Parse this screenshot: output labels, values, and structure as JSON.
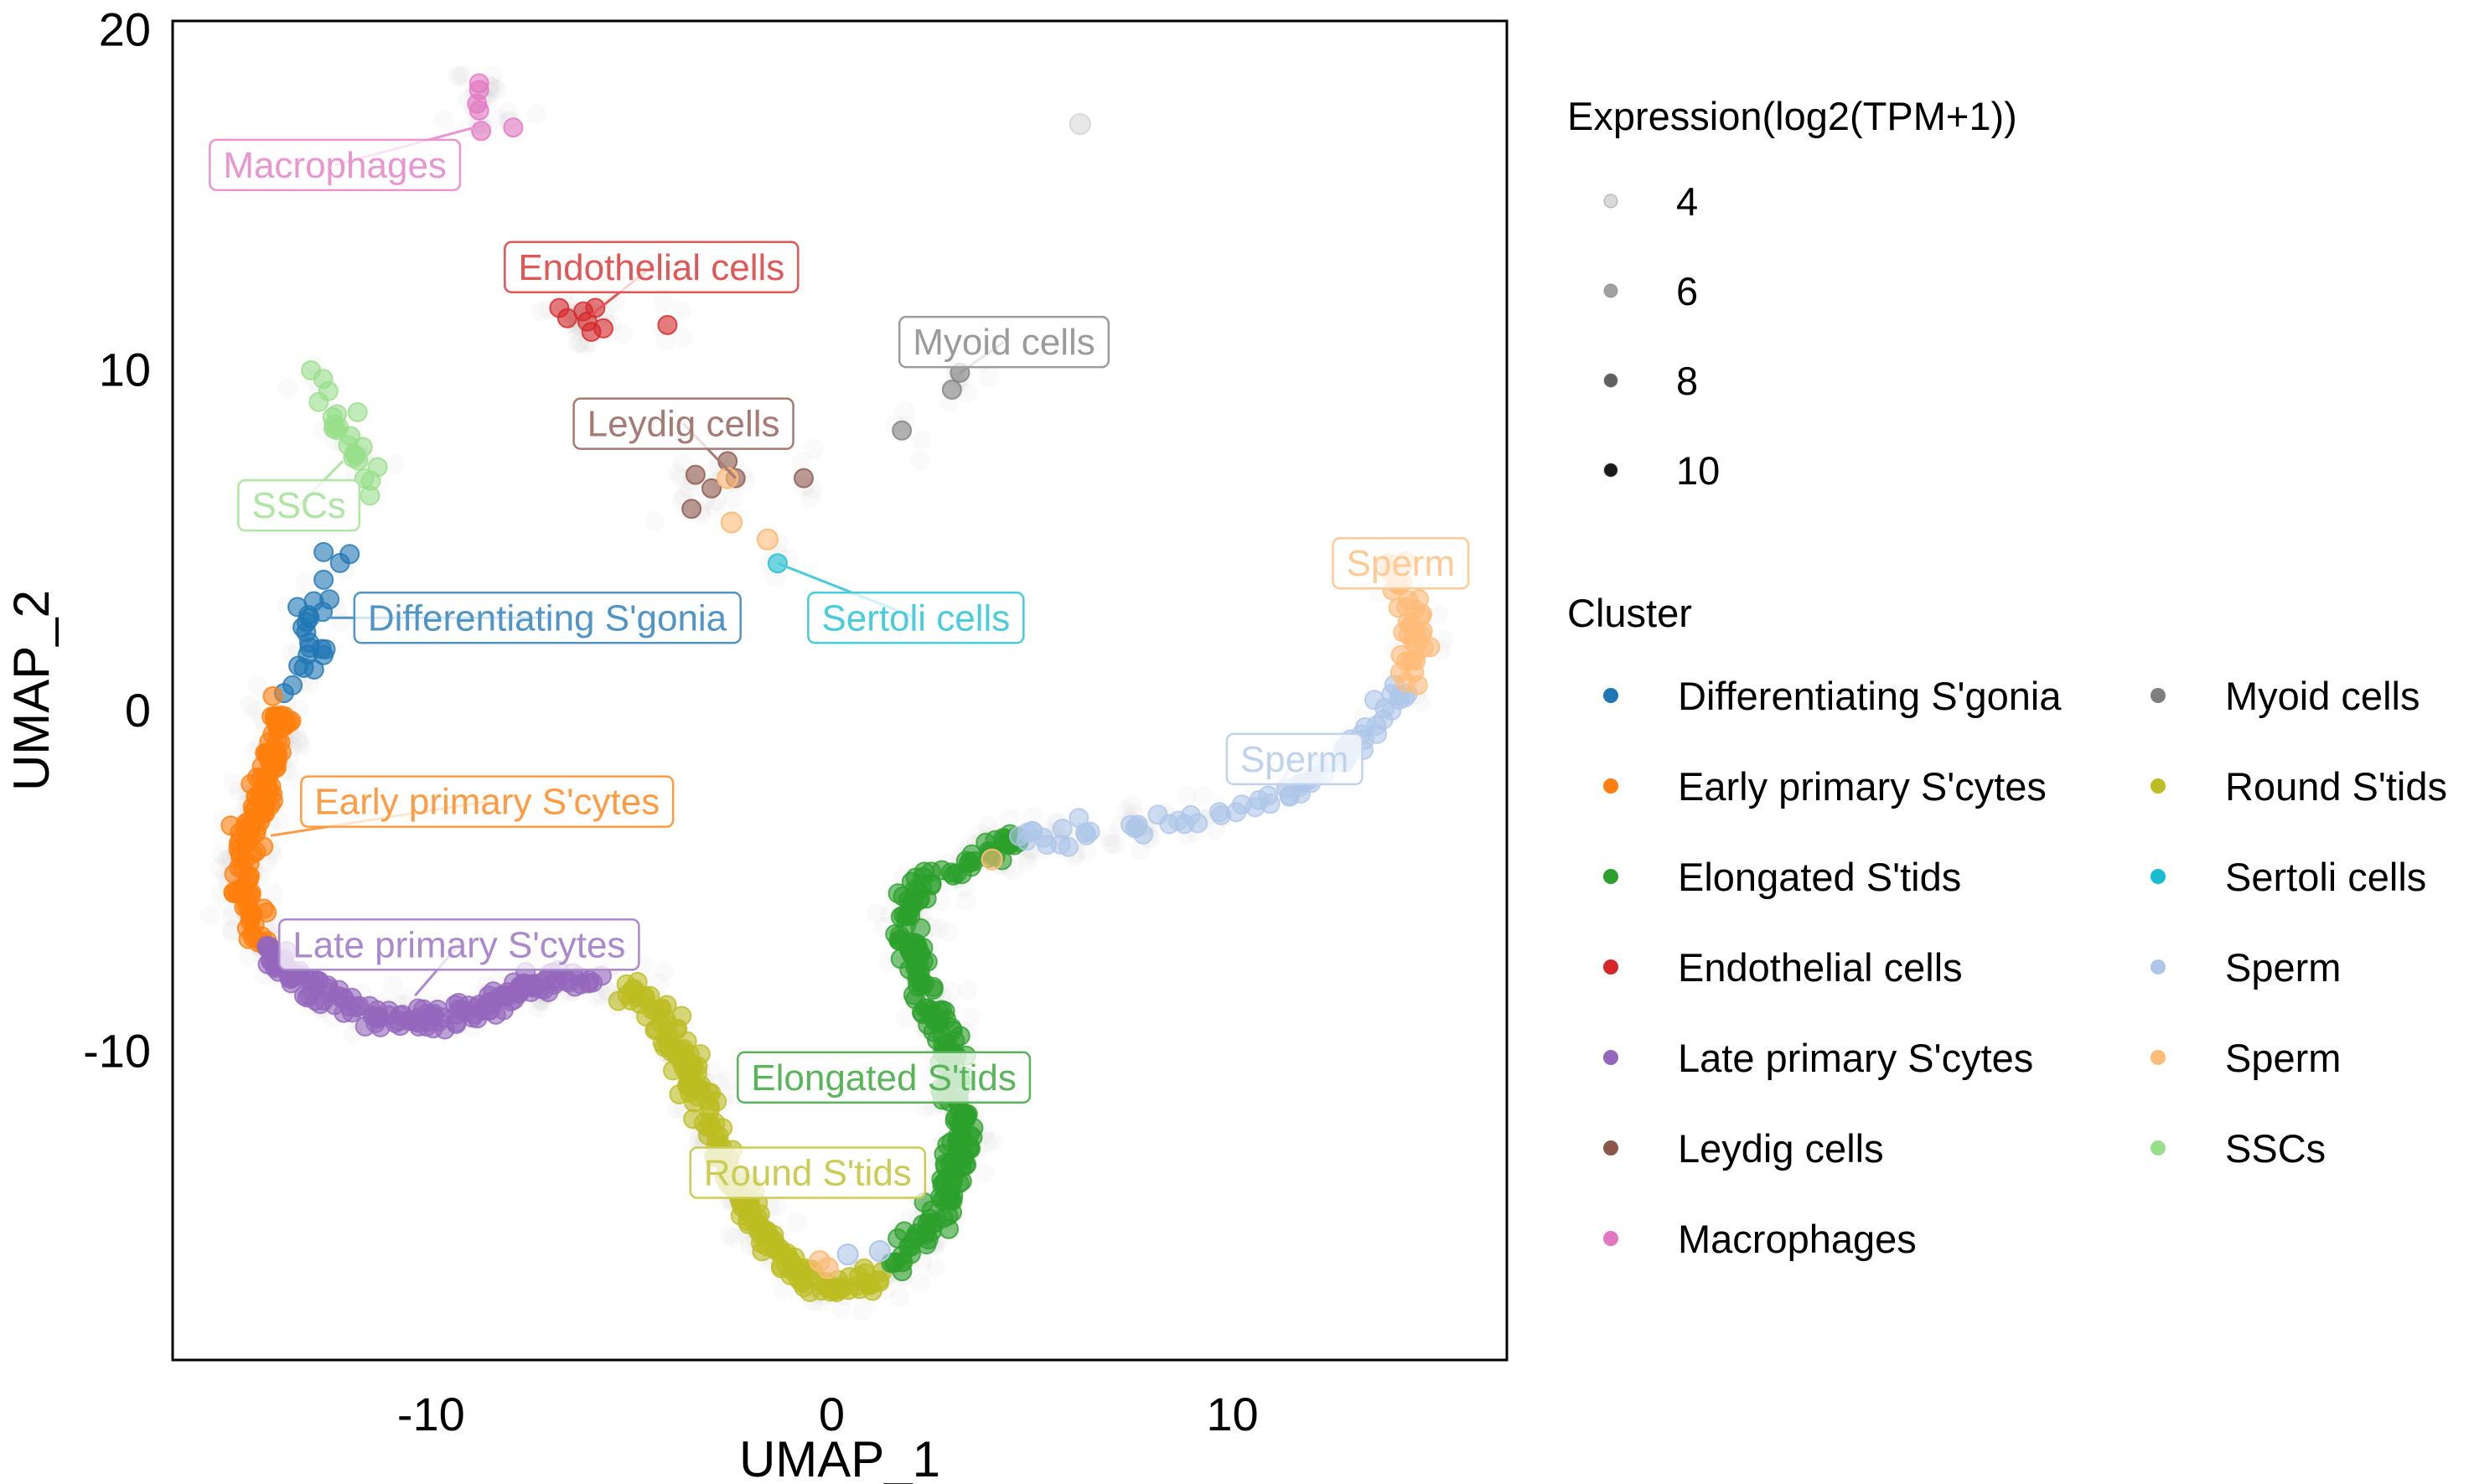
{
  "chart_data": {
    "type": "scatter",
    "title": "",
    "xlabel": "UMAP_1",
    "ylabel": "UMAP_2",
    "xlim": [
      -16.45,
      16.85
    ],
    "ylim": [
      -19.1,
      20.23
    ],
    "x_ticks": [
      -10,
      0,
      10
    ],
    "y_ticks": [
      -10,
      0,
      10,
      20
    ],
    "grid": false,
    "legends": {
      "expression": {
        "title": "Expression(log2(TPM+1))",
        "placement": "right-top",
        "entries": [
          {
            "label": "4",
            "value": 4,
            "color": "#d9d9d9"
          },
          {
            "label": "6",
            "value": 6,
            "color": "#a0a0a0"
          },
          {
            "label": "8",
            "value": 8,
            "color": "#606060"
          },
          {
            "label": "10",
            "value": 10,
            "color": "#1a1a1a"
          }
        ]
      },
      "cluster": {
        "title": "Cluster",
        "placement": "right-bottom",
        "columns": 2,
        "entries": [
          {
            "label": "Differentiating S'gonia",
            "color": "#1f77b4"
          },
          {
            "label": "Early primary S'cytes",
            "color": "#ff7f0e"
          },
          {
            "label": "Elongated S'tids",
            "color": "#2ca02c"
          },
          {
            "label": "Endothelial cells",
            "color": "#d62728"
          },
          {
            "label": "Late primary S'cytes",
            "color": "#9467bd"
          },
          {
            "label": "Leydig cells",
            "color": "#8c564b"
          },
          {
            "label": "Macrophages",
            "color": "#e377c2"
          },
          {
            "label": "Myoid cells",
            "color": "#7f7f7f"
          },
          {
            "label": "Round S'tids",
            "color": "#bcbd22"
          },
          {
            "label": "Sertoli cells",
            "color": "#17becf"
          },
          {
            "label": "Sperm",
            "color": "#aec7e8"
          },
          {
            "label": "Sperm",
            "color": "#ffbb78"
          },
          {
            "label": "SSCs",
            "color": "#98df8a"
          }
        ]
      }
    },
    "clusters": [
      {
        "name": "Macrophages",
        "color": "#e377c2",
        "label_pos": [
          -12.4,
          16.0
        ],
        "anchor": [
          -8.6,
          17.2
        ],
        "points": [
          [
            -8.8,
            18.4
          ],
          [
            -8.8,
            18.2
          ],
          [
            -8.85,
            17.8
          ],
          [
            -8.8,
            17.6
          ],
          [
            -8.75,
            17.0
          ],
          [
            -7.95,
            17.1
          ]
        ]
      },
      {
        "name": "Endothelial cells",
        "color": "#d62728",
        "label_pos": [
          -4.5,
          13.0
        ],
        "anchor": [
          -6.0,
          11.6
        ],
        "points": [
          [
            -6.8,
            11.8
          ],
          [
            -6.6,
            11.5
          ],
          [
            -6.2,
            11.7
          ],
          [
            -6.1,
            11.4
          ],
          [
            -6.0,
            11.1
          ],
          [
            -5.9,
            11.8
          ],
          [
            -5.7,
            11.2
          ],
          [
            -4.1,
            11.3
          ]
        ]
      },
      {
        "name": "Myoid cells",
        "color": "#7f7f7f",
        "label_pos": [
          4.3,
          10.8
        ],
        "anchor": [
          3.2,
          9.9
        ],
        "points": [
          [
            3.2,
            9.9
          ],
          [
            3.0,
            9.4
          ],
          [
            1.75,
            8.2
          ]
        ]
      },
      {
        "name": "Leydig cells",
        "color": "#8c564b",
        "label_pos": [
          -3.7,
          8.4
        ],
        "anchor": [
          -2.4,
          6.8
        ],
        "points": [
          [
            -2.6,
            7.3
          ],
          [
            -3.4,
            6.9
          ],
          [
            -3.0,
            6.5
          ],
          [
            -2.4,
            6.8
          ],
          [
            -3.5,
            5.9
          ],
          [
            -0.7,
            6.8
          ]
        ]
      },
      {
        "name": "Sertoli cells",
        "color": "#17becf",
        "label_pos": [
          2.1,
          2.7
        ],
        "anchor": [
          -1.35,
          4.3
        ],
        "points": [
          [
            -1.35,
            4.3
          ]
        ]
      },
      {
        "name": "SSCs",
        "color": "#98df8a",
        "label_pos": [
          -13.3,
          6.0
        ],
        "anchor": [
          -12.2,
          7.3
        ],
        "path": [
          [
            -13.07,
            9.76
          ],
          [
            -12.47,
            8.77
          ],
          [
            -11.99,
            7.74
          ],
          [
            -11.59,
            7.03
          ],
          [
            -11.59,
            6.33
          ]
        ],
        "count": 22
      },
      {
        "name": "Differentiating S'gonia",
        "color": "#1f77b4",
        "label_pos": [
          -7.1,
          2.7
        ],
        "anchor": [
          -12.6,
          2.7
        ],
        "path": [
          [
            -12.35,
            4.5
          ],
          [
            -12.75,
            3.5
          ],
          [
            -13.2,
            2.8
          ],
          [
            -12.95,
            1.6
          ],
          [
            -13.55,
            0.7
          ]
        ],
        "count": 24
      },
      {
        "name": "Early primary S'cytes",
        "color": "#ff7f0e",
        "label_pos": [
          -8.6,
          -2.7
        ],
        "anchor": [
          -14.0,
          -3.7
        ],
        "path": [
          [
            -13.75,
            0.0
          ],
          [
            -13.95,
            -1.17
          ],
          [
            -14.26,
            -2.58
          ],
          [
            -14.54,
            -3.98
          ],
          [
            -14.74,
            -5.39
          ],
          [
            -14.34,
            -6.79
          ]
        ],
        "count": 140
      },
      {
        "name": "Late primary S'cytes",
        "color": "#9467bd",
        "label_pos": [
          -9.3,
          -6.9
        ],
        "anchor": [
          -10.4,
          -8.4
        ],
        "path": [
          [
            -14.14,
            -7.03
          ],
          [
            -13.35,
            -7.97
          ],
          [
            -11.95,
            -8.77
          ],
          [
            -10.36,
            -9.14
          ],
          [
            -8.76,
            -8.77
          ],
          [
            -7.17,
            -7.97
          ],
          [
            -5.78,
            -7.83
          ]
        ],
        "count": 160
      },
      {
        "name": "Round S'tids",
        "color": "#bcbd22",
        "label_pos": [
          -0.6,
          -13.6
        ],
        "anchor": [
          -0.6,
          -13.6
        ],
        "path": [
          [
            -5.38,
            -8.11
          ],
          [
            -4.38,
            -8.67
          ],
          [
            -3.59,
            -10.55
          ],
          [
            -2.59,
            -13.36
          ],
          [
            -1.59,
            -15.71
          ],
          [
            -0.04,
            -17.11
          ],
          [
            1.55,
            -16.41
          ]
        ],
        "count": 200
      },
      {
        "name": "Elongated S'tids",
        "color": "#2ca02c",
        "label_pos": [
          1.3,
          -10.8
        ],
        "anchor": [
          1.3,
          -10.8
        ],
        "path": [
          [
            1.55,
            -16.41
          ],
          [
            2.75,
            -14.77
          ],
          [
            3.35,
            -12.43
          ],
          [
            2.75,
            -9.61
          ],
          [
            1.95,
            -7.27
          ],
          [
            1.95,
            -5.39
          ],
          [
            3.15,
            -4.59
          ],
          [
            4.74,
            -3.75
          ]
        ],
        "count": 230
      },
      {
        "name": "Sperm",
        "color": "#aec7e8",
        "label_pos": [
          11.55,
          -1.45
        ],
        "anchor": [
          11.0,
          -2.6
        ],
        "path": [
          [
            4.74,
            -3.75
          ],
          [
            7.13,
            -3.61
          ],
          [
            9.52,
            -3.05
          ],
          [
            11.51,
            -2.34
          ],
          [
            13.11,
            -1.17
          ],
          [
            14.3,
            0.7
          ]
        ],
        "count": 70
      },
      {
        "name": "Sperm",
        "color": "#ffbb78",
        "label_pos": [
          14.2,
          4.3
        ],
        "anchor": [
          14.2,
          3.8
        ],
        "path": [
          [
            14.3,
            0.7
          ],
          [
            14.7,
            2.11
          ],
          [
            14.3,
            3.28
          ],
          [
            13.9,
            4.45
          ]
        ],
        "count": 40
      }
    ],
    "stray_points": [
      {
        "x": 6.2,
        "y": 17.2,
        "color": "#d9d9d9"
      },
      {
        "x": -2.6,
        "y": 6.8,
        "color": "#ffbb78"
      },
      {
        "x": -2.5,
        "y": 5.5,
        "color": "#ffbb78"
      },
      {
        "x": -1.6,
        "y": 5.0,
        "color": "#ffbb78"
      },
      {
        "x": -0.3,
        "y": -16.2,
        "color": "#ffbb78"
      },
      {
        "x": -0.1,
        "y": -16.4,
        "color": "#ffbb78"
      },
      {
        "x": 0.4,
        "y": -16.0,
        "color": "#aec7e8"
      },
      {
        "x": 1.2,
        "y": -15.9,
        "color": "#aec7e8"
      },
      {
        "x": 4.0,
        "y": -4.4,
        "color": "#ffbb78"
      }
    ]
  }
}
